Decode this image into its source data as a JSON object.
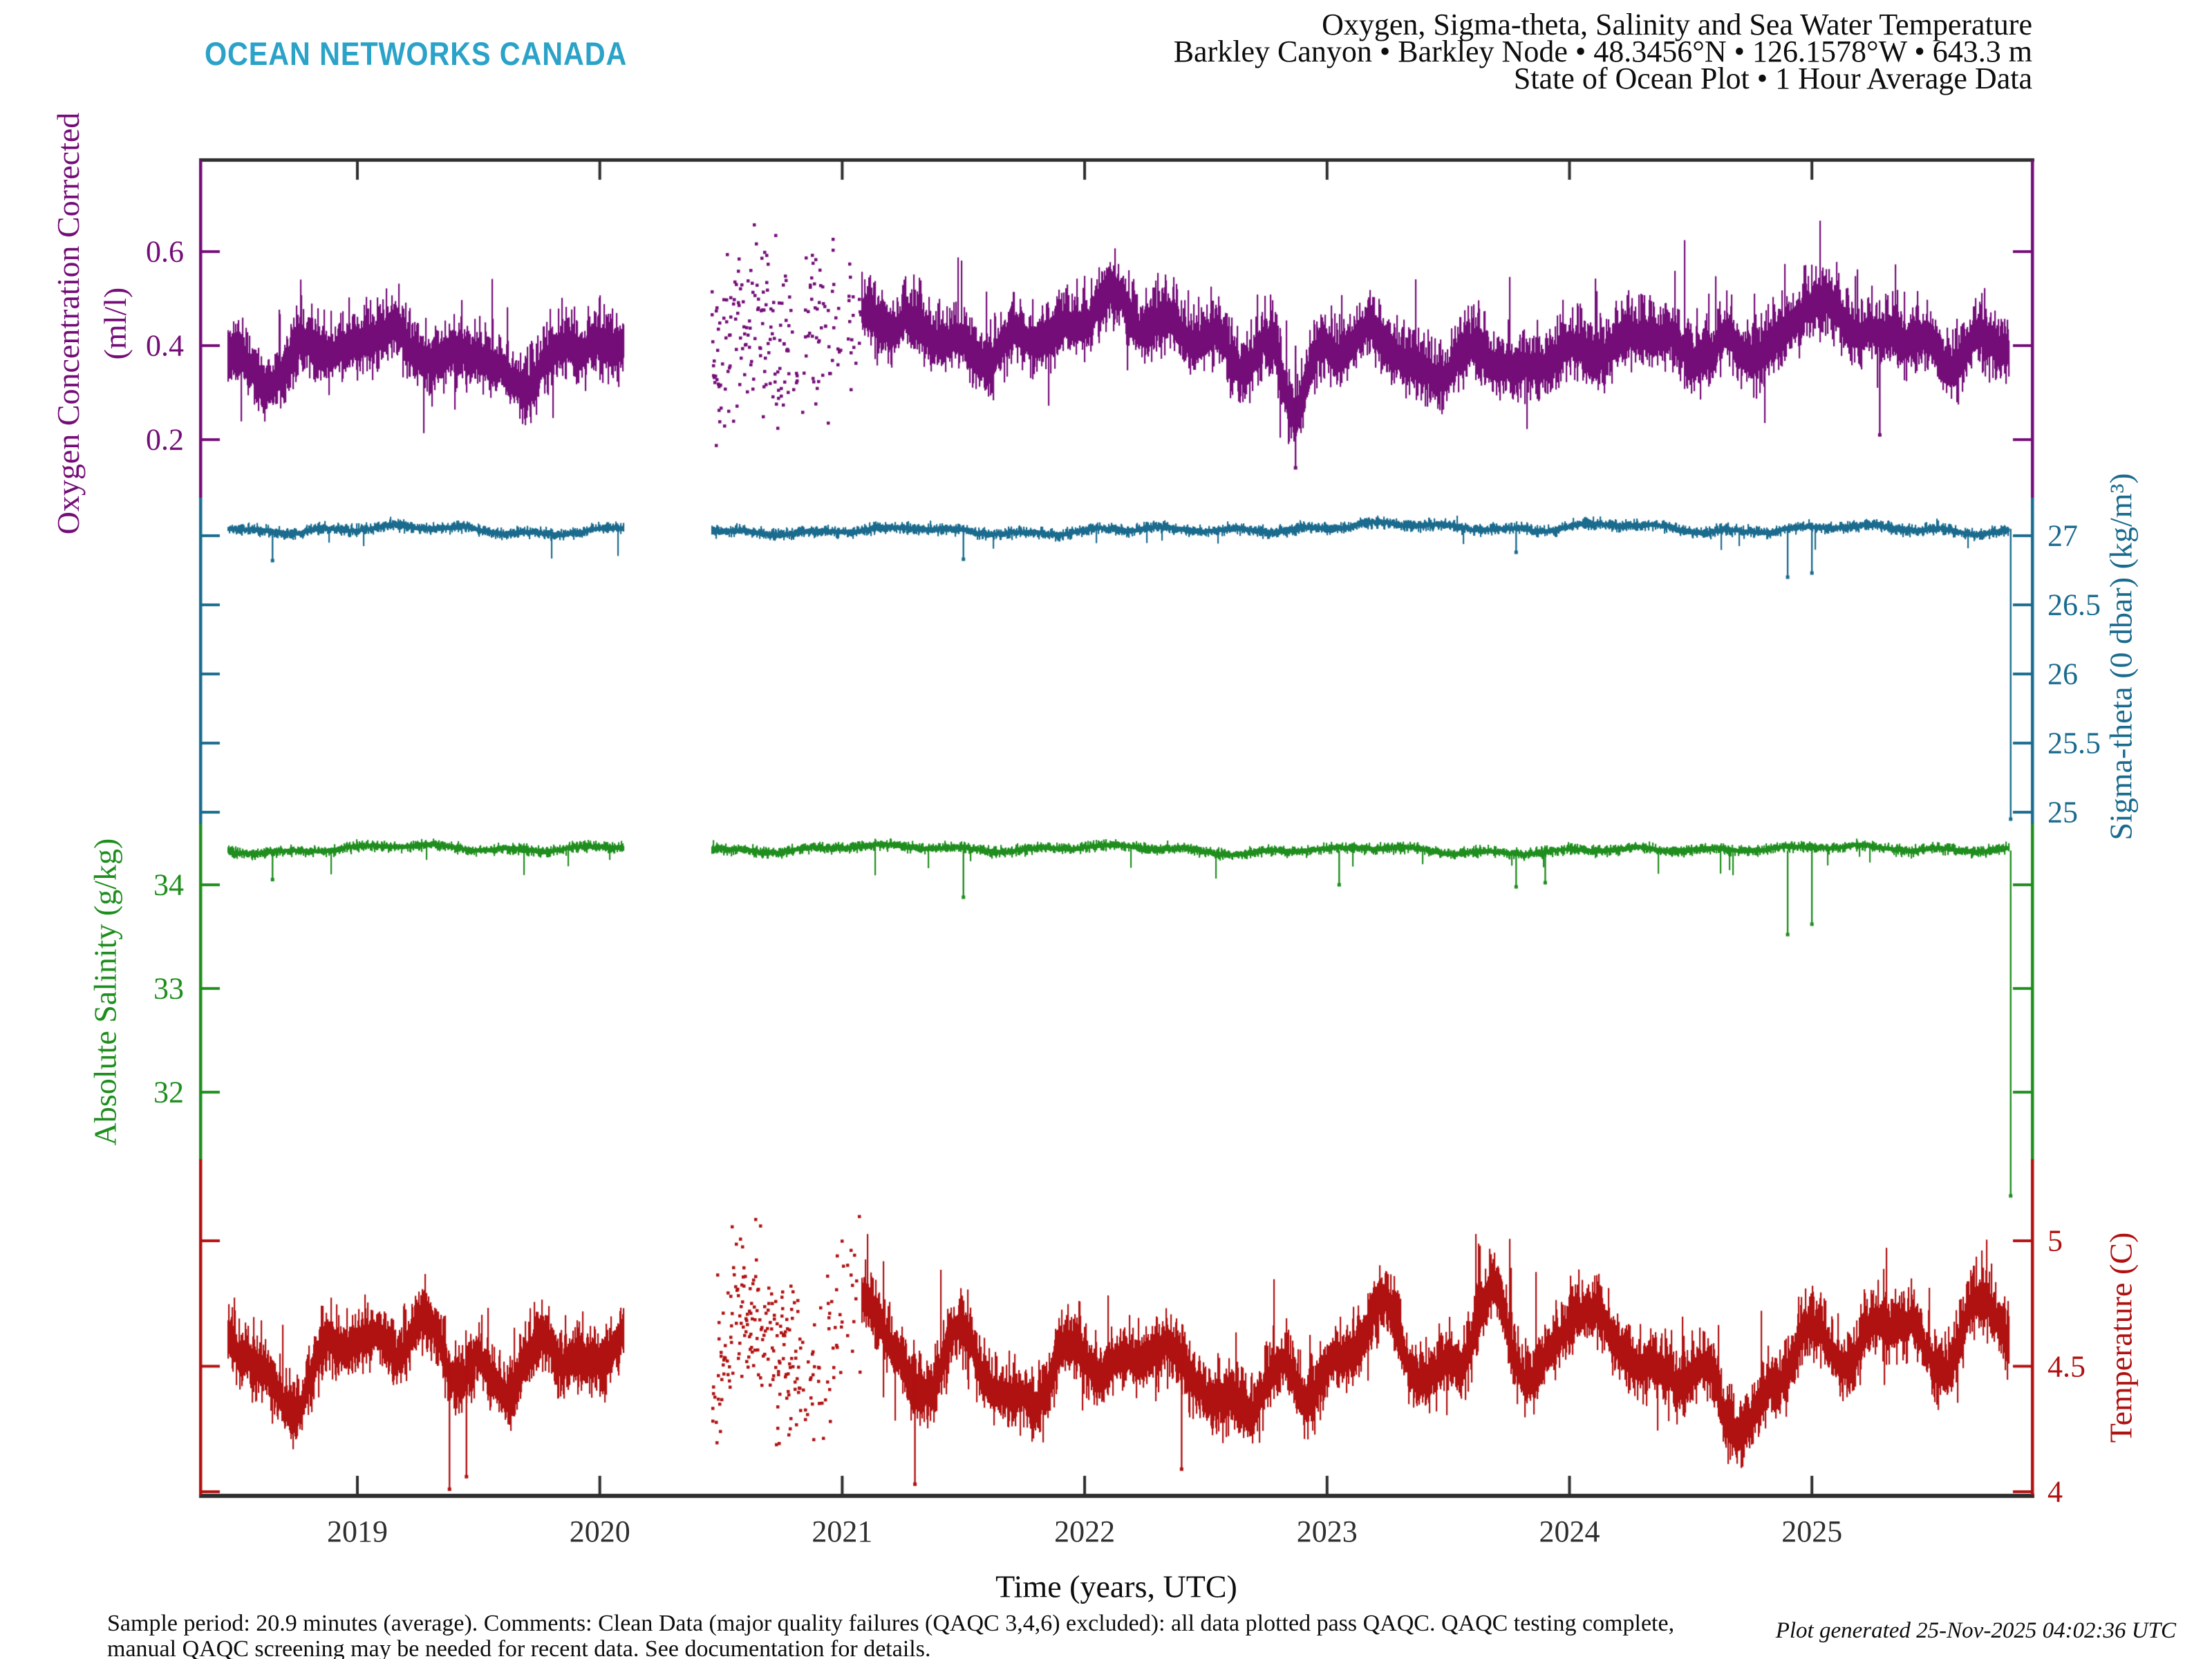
{
  "logo": "OCEAN NETWORKS CANADA",
  "title": {
    "line1": "Oxygen, Sigma-theta, Salinity and Sea Water Temperature",
    "line2": "Barkley Canyon • Barkley Node • 48.3456°N • 126.1578°W • 643.3 m",
    "line3": "State of Ocean Plot • 1 Hour Average Data"
  },
  "footer": {
    "line1": "Sample period: 20.9 minutes (average). Comments: Clean Data (major quality failures (QAQC 3,4,6) excluded): all data plotted pass QAQC. QAQC testing complete,",
    "line2": "manual QAQC screening may be needed for recent data. See documentation for details.",
    "generated": "Plot generated 25-Nov-2025 04:02:36 UTC"
  },
  "colors": {
    "logo": "#2BA2C8",
    "frame": "#2E2E2E",
    "text": "#111111",
    "oxygen": "#740D78",
    "sigma_theta": "#1A6B8E",
    "salinity": "#1F8E1E",
    "temperature": "#B01111"
  },
  "chart_data": {
    "type": "scatter",
    "title": "Oxygen, Sigma-theta, Salinity and Sea Water Temperature",
    "x_axis": {
      "label": "Time (years, UTC)",
      "ticks": [
        2019,
        2020,
        2021,
        2022,
        2023,
        2024,
        2025
      ],
      "range": [
        2018.35,
        2025.97
      ]
    },
    "data_gap": [
      2020.1,
      2020.46
    ],
    "sparse_range": [
      2020.46,
      2021.08
    ],
    "series": [
      {
        "id": "oxygen",
        "label": "Oxygen Concentration Corrected",
        "unit": "(ml/l)",
        "color": "#740D78",
        "side": "left",
        "ticks": [
          {
            "v": 0.6,
            "label": "0.6"
          },
          {
            "v": 0.4,
            "label": "0.4"
          },
          {
            "v": 0.2,
            "label": "0.2"
          }
        ],
        "value_range": [
          0.13,
          0.73
        ],
        "baseline": 0.4,
        "summary_points": [
          [
            2018.5,
            0.37
          ],
          [
            2018.85,
            0.47
          ],
          [
            2019.1,
            0.4
          ],
          [
            2019.4,
            0.35
          ],
          [
            2019.7,
            0.41
          ],
          [
            2020.0,
            0.42
          ],
          [
            2020.55,
            0.45
          ],
          [
            2020.9,
            0.38
          ],
          [
            2021.2,
            0.35
          ],
          [
            2021.5,
            0.36
          ],
          [
            2021.9,
            0.42
          ],
          [
            2022.2,
            0.41
          ],
          [
            2022.5,
            0.38
          ],
          [
            2022.87,
            0.22
          ],
          [
            2023.2,
            0.42
          ],
          [
            2023.6,
            0.46
          ],
          [
            2024.0,
            0.43
          ],
          [
            2024.4,
            0.4
          ],
          [
            2024.95,
            0.49
          ],
          [
            2025.3,
            0.4
          ],
          [
            2025.7,
            0.45
          ]
        ],
        "events": [
          [
            2022.87,
            0.14
          ],
          [
            2025.28,
            0.21
          ]
        ],
        "gen": {
          "seed": 11,
          "base": 0.4,
          "sin": [
            [
              0.035,
              1.0,
              0.55
            ],
            [
              0.022,
              0.37,
              1.3
            ],
            [
              0.016,
              0.21,
              4.0
            ]
          ],
          "walk": [
            0.004,
            0.05
          ],
          "band": [
            0.025,
            0.085,
            0.022,
            0.07
          ],
          "spike": [
            0.012,
            0.1,
            0.006,
            0.08
          ],
          "clamp": [
            0.13,
            0.72
          ],
          "bumps": [
            [
              2018.85,
              0.06,
              0.1
            ],
            [
              2020.62,
              0.05,
              0.1
            ],
            [
              2021.35,
              -0.05,
              0.1
            ],
            [
              2022.87,
              -0.16,
              0.05
            ],
            [
              2023.7,
              0.05,
              0.09
            ],
            [
              2024.95,
              0.07,
              0.07
            ],
            [
              2025.65,
              0.05,
              0.07
            ]
          ],
          "dots": 0.09
        }
      },
      {
        "id": "sigma_theta",
        "label": "Sigma-theta (0 dbar) (kg/m³)",
        "unit": "kg/m³",
        "color": "#1A6B8E",
        "side": "right",
        "ticks": [
          {
            "v": 27,
            "label": "27"
          },
          {
            "v": 26.5,
            "label": "26.5"
          },
          {
            "v": 26,
            "label": "26"
          },
          {
            "v": 25.5,
            "label": "25.5"
          },
          {
            "v": 25,
            "label": "25"
          }
        ],
        "value_range": [
          24.95,
          27.18
        ],
        "baseline": 27.05,
        "summary_points": [
          [
            2018.5,
            27.05
          ],
          [
            2019.5,
            27.04
          ],
          [
            2020.5,
            27.06
          ],
          [
            2021.5,
            27.03
          ],
          [
            2022.5,
            27.05
          ],
          [
            2023.5,
            27.02
          ],
          [
            2024.5,
            27.07
          ],
          [
            2024.9,
            26.7
          ],
          [
            2025.5,
            27.08
          ],
          [
            2025.82,
            24.95
          ]
        ],
        "events": [
          [
            2018.65,
            26.82
          ],
          [
            2021.5,
            26.83
          ],
          [
            2023.78,
            26.88
          ],
          [
            2024.9,
            26.7
          ],
          [
            2025.0,
            26.73
          ],
          [
            2025.82,
            24.95
          ]
        ],
        "gen": {
          "seed": 22,
          "base": 27.05,
          "sin": [
            [
              0.018,
              1.0,
              0.0
            ],
            [
              0.012,
              0.29,
              2.0
            ]
          ],
          "walk": [
            0.002,
            0.02
          ],
          "band": [
            0.012,
            0.045,
            0.012,
            0.045
          ],
          "spike": [
            0.002,
            0.05,
            0.006,
            0.12
          ],
          "clamp": [
            26.45,
            27.18
          ],
          "bumps": []
        }
      },
      {
        "id": "salinity",
        "label": "Absolute Salinity (g/kg)",
        "unit": "g/kg",
        "color": "#1F8E1E",
        "side": "left",
        "ticks": [
          {
            "v": 34,
            "label": "34"
          },
          {
            "v": 33,
            "label": "33"
          },
          {
            "v": 32,
            "label": "32"
          }
        ],
        "value_range": [
          31.0,
          34.48
        ],
        "baseline": 34.33,
        "summary_points": [
          [
            2018.5,
            34.33
          ],
          [
            2019.5,
            34.31
          ],
          [
            2020.5,
            34.34
          ],
          [
            2021.5,
            34.3
          ],
          [
            2022.5,
            34.35
          ],
          [
            2023.5,
            34.32
          ],
          [
            2024.5,
            34.36
          ],
          [
            2024.9,
            33.55
          ],
          [
            2025.5,
            34.38
          ],
          [
            2025.82,
            31.0
          ]
        ],
        "events": [
          [
            2018.65,
            34.05
          ],
          [
            2021.5,
            33.88
          ],
          [
            2023.05,
            34.0
          ],
          [
            2023.78,
            33.98
          ],
          [
            2023.9,
            34.02
          ],
          [
            2024.9,
            33.52
          ],
          [
            2025.0,
            33.62
          ],
          [
            2025.82,
            31.0
          ]
        ],
        "gen": {
          "seed": 33,
          "base": 34.33,
          "sin": [
            [
              0.022,
              1.0,
              0.5
            ],
            [
              0.015,
              0.31,
              0.0
            ]
          ],
          "walk": [
            0.002,
            0.03
          ],
          "band": [
            0.015,
            0.055,
            0.015,
            0.06
          ],
          "spike": [
            0.002,
            0.05,
            0.007,
            0.18
          ],
          "clamp": [
            33.35,
            34.48
          ],
          "bumps": []
        }
      },
      {
        "id": "temperature",
        "label": "Temperature (C)",
        "unit": "C",
        "color": "#B01111",
        "side": "right",
        "ticks": [
          {
            "v": 5,
            "label": "5"
          },
          {
            "v": 4.5,
            "label": "4.5"
          },
          {
            "v": 4,
            "label": "4"
          }
        ],
        "value_range": [
          4.0,
          5.18
        ],
        "baseline": 4.55,
        "summary_points": [
          [
            2018.55,
            4.75
          ],
          [
            2018.9,
            4.55
          ],
          [
            2019.38,
            4.1
          ],
          [
            2019.7,
            4.5
          ],
          [
            2020.0,
            4.45
          ],
          [
            2020.6,
            4.75
          ],
          [
            2021.0,
            4.5
          ],
          [
            2021.3,
            4.15
          ],
          [
            2021.9,
            4.7
          ],
          [
            2022.4,
            4.3
          ],
          [
            2022.9,
            4.5
          ],
          [
            2023.35,
            4.7
          ],
          [
            2023.7,
            5.0
          ],
          [
            2024.1,
            4.7
          ],
          [
            2024.45,
            4.4
          ],
          [
            2024.8,
            4.75
          ],
          [
            2025.1,
            4.6
          ],
          [
            2025.65,
            5.05
          ],
          [
            2025.8,
            4.6
          ]
        ],
        "events": [
          [
            2019.38,
            4.01
          ],
          [
            2019.45,
            4.06
          ],
          [
            2021.3,
            4.03
          ],
          [
            2022.4,
            4.09
          ]
        ],
        "gen": {
          "seed": 44,
          "base": 4.55,
          "sin": [
            [
              0.12,
              1.0,
              0.2
            ],
            [
              0.09,
              0.43,
              0.7
            ],
            [
              0.05,
              0.22,
              2.5
            ]
          ],
          "walk": [
            0.01,
            0.09
          ],
          "band": [
            0.045,
            0.16,
            0.04,
            0.13
          ],
          "spike": [
            0.012,
            0.18,
            0.008,
            0.12
          ],
          "clamp": [
            4.0,
            5.17
          ],
          "bumps": [
            [
              2019.38,
              -0.2,
              0.07
            ],
            [
              2020.62,
              0.12,
              0.1
            ],
            [
              2021.3,
              -0.16,
              0.08
            ],
            [
              2022.38,
              -0.12,
              0.06
            ],
            [
              2023.7,
              0.26,
              0.09
            ],
            [
              2024.0,
              0.1,
              0.07
            ],
            [
              2024.45,
              -0.12,
              0.07
            ],
            [
              2025.68,
              0.28,
              0.09
            ]
          ],
          "dots": 0.16
        }
      }
    ]
  }
}
